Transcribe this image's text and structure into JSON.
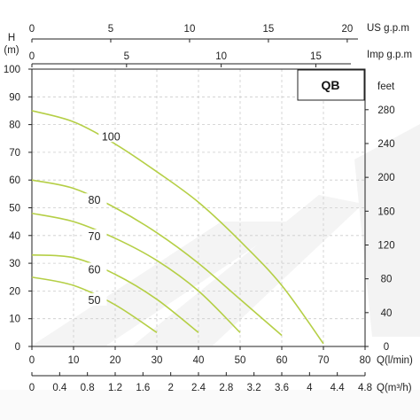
{
  "chart_data": {
    "type": "line",
    "badge": "QB",
    "x_axes": {
      "us_gpm": {
        "label": "US g.p.m",
        "ticks": [
          "0",
          "5",
          "10",
          "15",
          "20"
        ],
        "max": 21.13
      },
      "imp_gpm": {
        "label": "Imp g.p.m",
        "ticks": [
          "0",
          "5",
          "10",
          "15"
        ],
        "max": 17.6
      },
      "q_lmin": {
        "label": "Q(l/min)",
        "ticks": [
          "0",
          "10",
          "20",
          "30",
          "40",
          "50",
          "60",
          "70",
          "80"
        ],
        "max": 80
      },
      "q_m3h": {
        "label": "Q(m³/h)",
        "ticks": [
          "0",
          "0.4",
          "0.8",
          "1.2",
          "1.6",
          "2",
          "2.4",
          "2.8",
          "3.2",
          "3.6",
          "4",
          "4.4",
          "4.8"
        ],
        "max": 4.8
      }
    },
    "y_axes": {
      "left": {
        "label": "H\n(m)",
        "ticks": [
          "0",
          "10",
          "20",
          "30",
          "40",
          "50",
          "60",
          "70",
          "80",
          "90",
          "100"
        ],
        "max": 100
      },
      "right": {
        "label": "feet",
        "ticks": [
          "0",
          "40",
          "80",
          "120",
          "160",
          "200",
          "240",
          "280"
        ],
        "max": 328
      }
    },
    "series_color": "#b5cf46",
    "series": [
      {
        "name": "100",
        "label_at": [
          19,
          75
        ],
        "x": [
          0,
          10,
          20,
          30,
          40,
          50,
          60,
          70
        ],
        "y": [
          85,
          81,
          73,
          63,
          52,
          38,
          22,
          1
        ]
      },
      {
        "name": "80",
        "label_at": [
          15,
          52
        ],
        "x": [
          0,
          10,
          20,
          30,
          40,
          50,
          60
        ],
        "y": [
          60,
          57,
          50,
          41,
          30,
          17,
          4
        ]
      },
      {
        "name": "70",
        "label_at": [
          15,
          39
        ],
        "x": [
          0,
          10,
          20,
          30,
          40,
          50
        ],
        "y": [
          48,
          45,
          39,
          31,
          20,
          5
        ]
      },
      {
        "name": "60",
        "label_at": [
          15,
          27
        ],
        "x": [
          0,
          10,
          20,
          30,
          40
        ],
        "y": [
          33,
          32,
          26,
          17,
          5
        ]
      },
      {
        "name": "50",
        "label_at": [
          15,
          16
        ],
        "x": [
          0,
          10,
          20,
          30
        ],
        "y": [
          25,
          22,
          15,
          5
        ]
      }
    ]
  }
}
